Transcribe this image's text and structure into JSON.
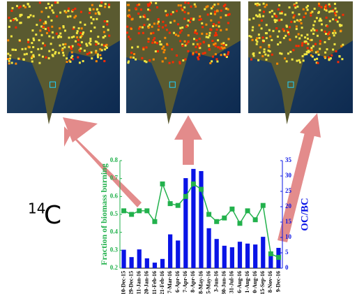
{
  "chart_data": {
    "type": "bar-line",
    "annotation_sup": "14",
    "annotation": "C",
    "ylabel": "Fraction of biomass burning",
    "y2label": "OC/BC",
    "categories": [
      "10-Dec-15",
      "29-Dec-15",
      "11-Jan-16",
      "20-Jan-16",
      "11-Feb-16",
      "21-Feb-16",
      "7-Mar-16",
      "6-Apr-16",
      "7-Apr-16",
      "8-Apr-16",
      "8-May-16",
      "5-May-16",
      "3-Jun-16",
      "30-Jun-16",
      "31-Jul-16",
      "6-Aug-16",
      "1-Aug-16",
      "0-Aug-16",
      "15-Sep-16",
      "8-Nov-16",
      "9-Dec-16"
    ],
    "series": [
      {
        "type": "line",
        "axis": "y",
        "color": "#22b14c",
        "values": [
          0.52,
          0.5,
          0.52,
          0.52,
          0.46,
          0.67,
          0.56,
          0.55,
          0.6,
          0.67,
          0.64,
          0.5,
          0.46,
          0.48,
          0.53,
          0.45,
          0.52,
          0.47,
          0.55,
          0.28,
          0.26
        ]
      },
      {
        "type": "bar",
        "axis": "y2",
        "color": "#0a14e6",
        "values": [
          6,
          3.6,
          6.1,
          3.2,
          1.8,
          3,
          11,
          9,
          29.3,
          32.3,
          31.6,
          13,
          9.5,
          7.3,
          6.8,
          8.6,
          8,
          7.7,
          10.2,
          4.8,
          6.6
        ]
      }
    ],
    "ylim": [
      0.2,
      0.8
    ],
    "yticks": [
      0.2,
      0.3,
      0.4,
      0.5,
      0.6,
      0.7,
      0.8
    ],
    "y2lim": [
      0,
      35
    ],
    "y2ticks": [
      0,
      5,
      10,
      15,
      20,
      25,
      30,
      35
    ]
  }
}
